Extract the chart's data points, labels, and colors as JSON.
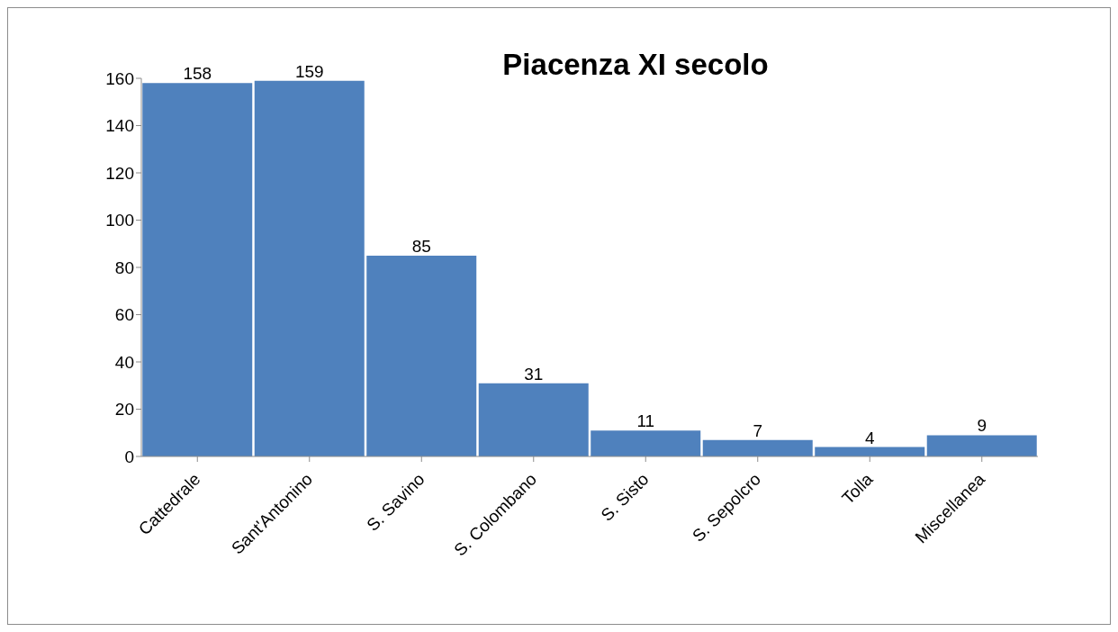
{
  "chart_data": {
    "type": "bar",
    "title": "Piacenza XI secolo",
    "categories": [
      "Cattedrale",
      "Sant'Antonino",
      "S. Savino",
      "S. Colombano",
      "S. Sisto",
      "S. Sepolcro",
      "Tolla",
      "Miscellanea"
    ],
    "values": [
      158,
      159,
      85,
      31,
      11,
      7,
      4,
      9
    ],
    "color": "#4f81bd",
    "ylim": [
      0,
      160
    ],
    "yticks": [
      0,
      20,
      40,
      60,
      80,
      100,
      120,
      140,
      160
    ],
    "data_labels": true
  }
}
